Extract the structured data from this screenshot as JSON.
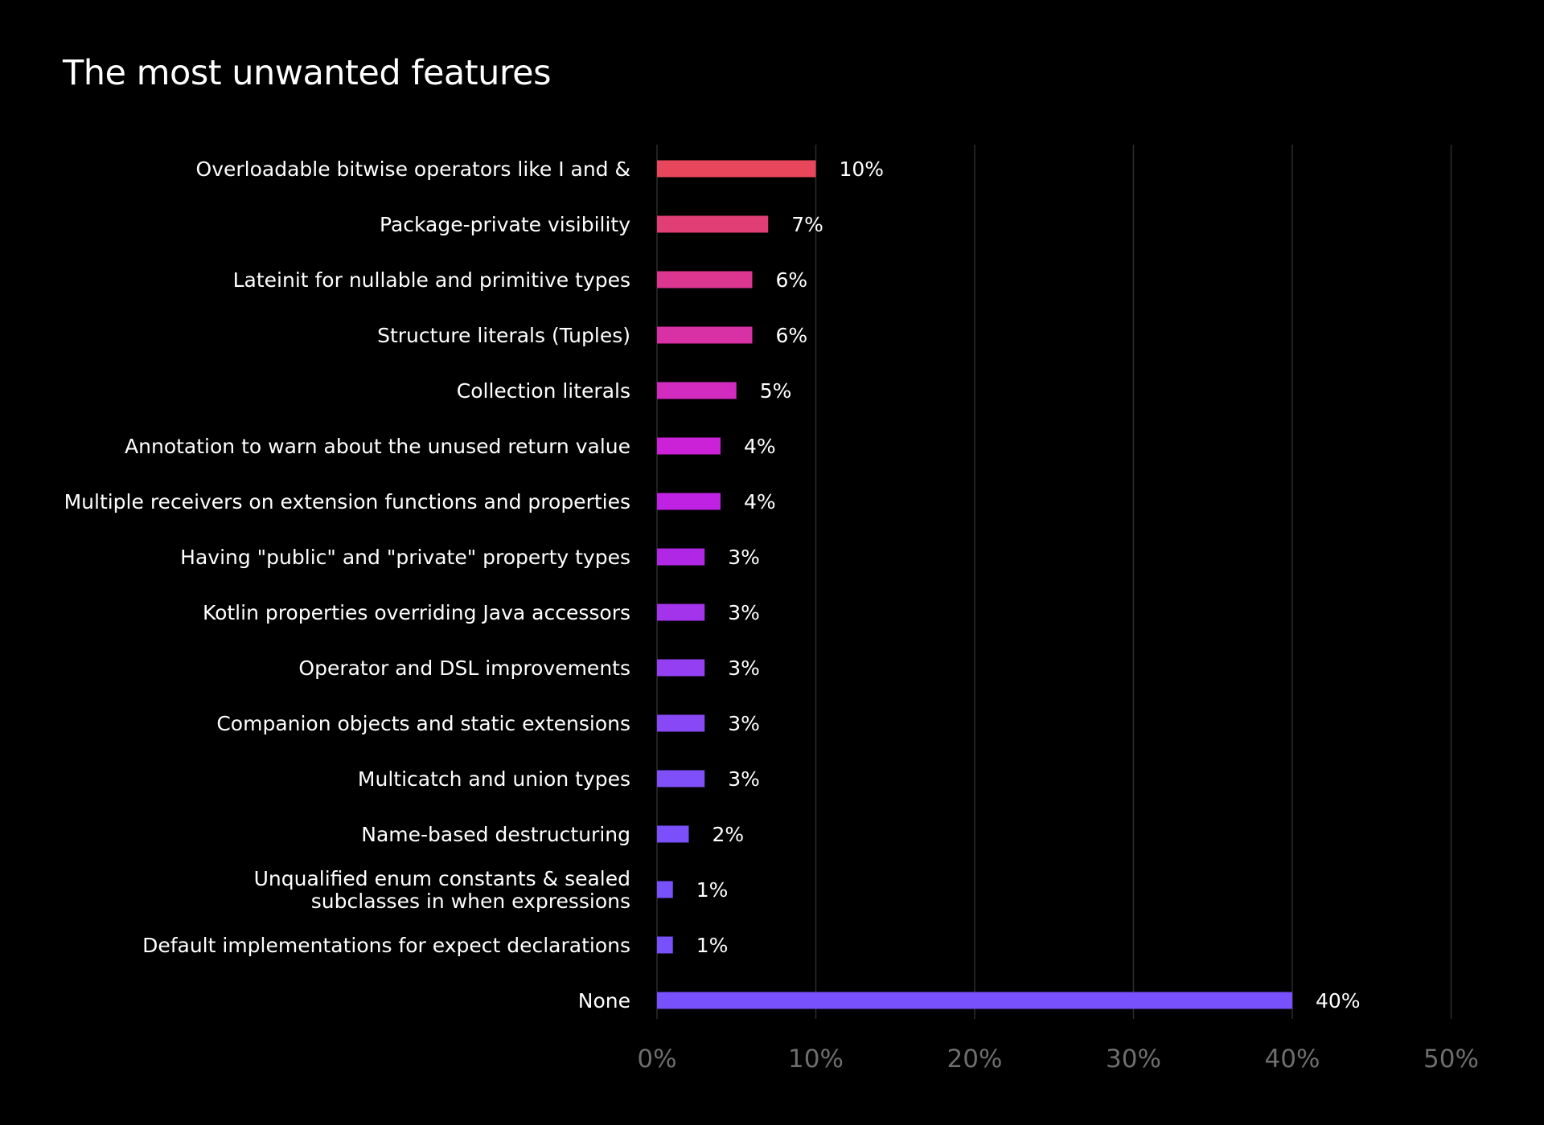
{
  "chart_data": {
    "type": "bar",
    "orientation": "horizontal",
    "title": "The most unwanted features",
    "xlabel": "",
    "ylabel": "",
    "xlim": [
      0,
      50
    ],
    "grid": true,
    "value_suffix": "%",
    "x_ticks": [
      "0%",
      "10%",
      "20%",
      "30%",
      "40%",
      "50%"
    ],
    "categories": [
      [
        "Overloadable bitwise operators like I and &"
      ],
      [
        "Package-private visibility"
      ],
      [
        "Lateinit for nullable and primitive types"
      ],
      [
        "Structure literals (Tuples)"
      ],
      [
        "Collection literals"
      ],
      [
        "Annotation to warn about the unused return value"
      ],
      [
        "Multiple receivers on extension functions and properties"
      ],
      [
        "Having \"public\" and \"private\" property types"
      ],
      [
        "Kotlin properties overriding Java accessors"
      ],
      [
        "Operator and DSL improvements"
      ],
      [
        "Companion objects and static extensions"
      ],
      [
        "Multicatch and union types"
      ],
      [
        "Name-based destructuring"
      ],
      [
        "Unqualified enum constants & sealed",
        "subclasses in when expressions"
      ],
      [
        "Default implementations for expect declarations"
      ],
      [
        "None"
      ]
    ],
    "values": [
      10,
      7,
      6,
      6,
      5,
      4,
      4,
      3,
      3,
      3,
      3,
      3,
      2,
      1,
      1,
      40
    ],
    "bar_colors": [
      "#e8475b",
      "#e03e74",
      "#dc3690",
      "#d830a5",
      "#d22bbf",
      "#cb22d8",
      "#c022e4",
      "#b028e6",
      "#a334ec",
      "#9440f2",
      "#8848f6",
      "#7f4ffa",
      "#7b50fb",
      "#7951fc",
      "#7951fc",
      "#7951fc"
    ],
    "colors": {
      "background": "#000000",
      "text": "#ffffff",
      "tick_text": "#6e6e6e",
      "grid": "#2c2c2c"
    }
  }
}
